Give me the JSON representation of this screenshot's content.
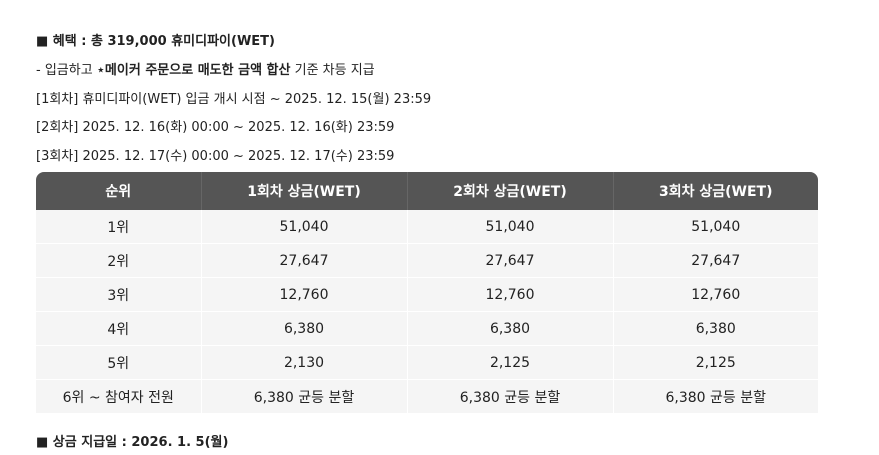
{
  "header": {
    "title": "■ 혜택 : 총 319,000 휴미디파이(WET)"
  },
  "intro": {
    "prefix": "- 입금하고 ",
    "bold": "⋆메이커 주문으로 매도한 금액 합산",
    "suffix": " 기준 차등 지급"
  },
  "rounds": [
    "[1회차] 휴미디파이(WET) 입금 개시 시점 ~ 2025. 12. 15(월) 23:59",
    "[2회차] 2025. 12. 16(화) 00:00 ~ 2025. 12. 16(화) 23:59",
    "[3회차] 2025. 12. 17(수) 00:00 ~ 2025. 12. 17(수) 23:59"
  ],
  "table": {
    "columns": [
      "순위",
      "1회차 상금(WET)",
      "2회차 상금(WET)",
      "3회차 상금(WET)"
    ],
    "rows": [
      [
        "1위",
        "51,040",
        "51,040",
        "51,040"
      ],
      [
        "2위",
        "27,647",
        "27,647",
        "27,647"
      ],
      [
        "3위",
        "12,760",
        "12,760",
        "12,760"
      ],
      [
        "4위",
        "6,380",
        "6,380",
        "6,380"
      ],
      [
        "5위",
        "2,130",
        "2,125",
        "2,125"
      ],
      [
        "6위 ~ 참여자 전원",
        "6,380 균등 분할",
        "6,380 균등 분할",
        "6,380 균등 분할"
      ]
    ]
  },
  "footer": {
    "title": "■ 상금 지급일 : 2026. 1. 5(월)"
  }
}
